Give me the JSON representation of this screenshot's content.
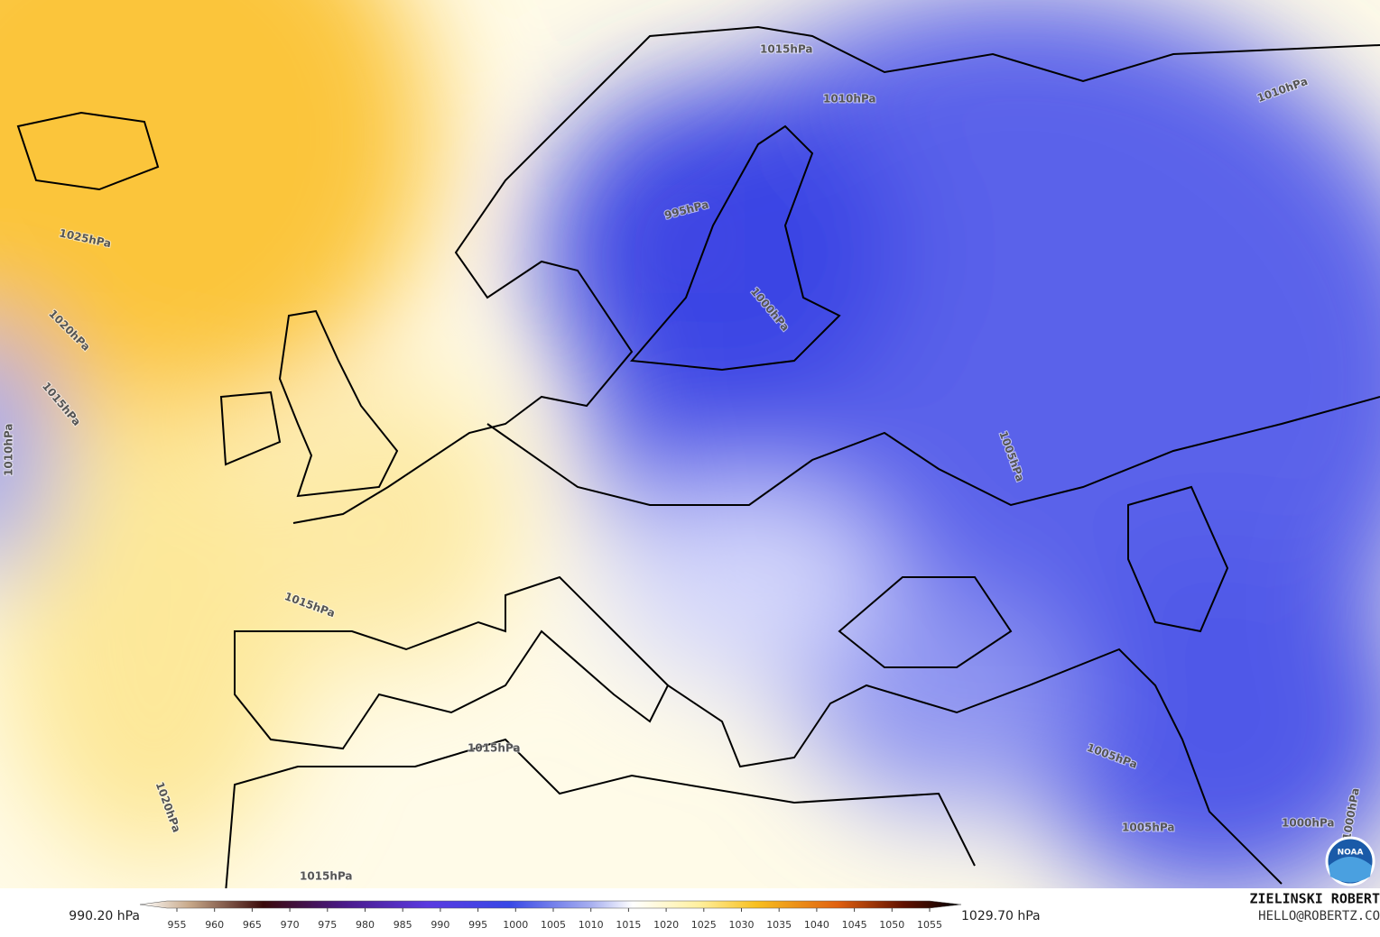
{
  "isobar_labels": [
    "1015hPa",
    "1010hPa",
    "1010hPa",
    "995hPa",
    "1000hPa",
    "1025hPa",
    "1020hPa",
    "1015hPa",
    "1010hPa",
    "1005hPa",
    "1015hPa",
    "1015hPa",
    "1020hPa",
    "1015hPa",
    "1005hPa",
    "1005hPa",
    "1000hPa",
    "1000hPa"
  ],
  "colorbar": {
    "min_label": "990.20 hPa",
    "max_label": "1029.70 hPa",
    "ticks": [
      955,
      960,
      965,
      970,
      975,
      980,
      985,
      990,
      995,
      1000,
      1005,
      1010,
      1015,
      1020,
      1025,
      1030,
      1035,
      1040,
      1045,
      1050,
      1055
    ]
  },
  "credit": {
    "author": "ZIELINSKI ROBERT",
    "email": "HELLO@ROBERTZ.CO"
  },
  "logo": "NOAA"
}
